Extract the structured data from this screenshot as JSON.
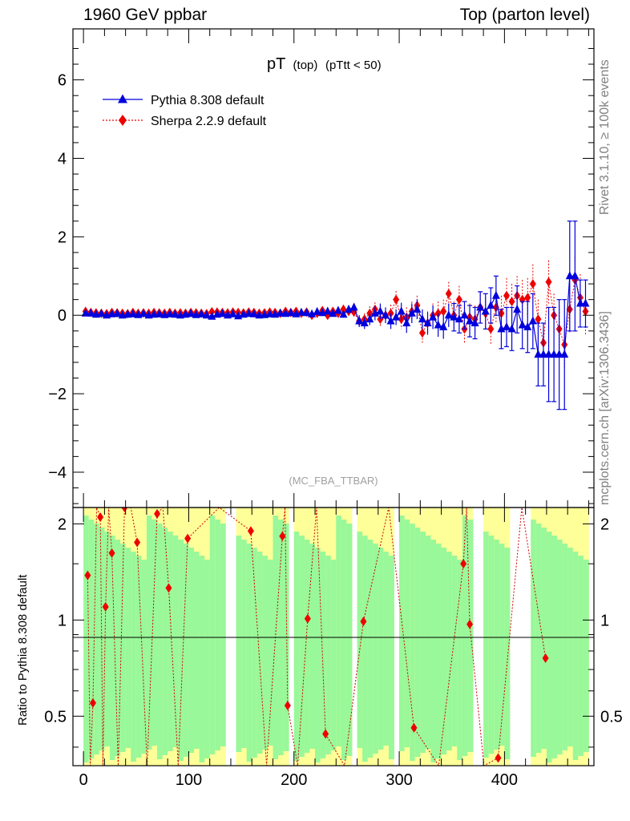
{
  "header": {
    "left": "1960 GeV ppbar",
    "right": "Top (parton level)"
  },
  "side_labels": {
    "rivet": "Rivet 3.1.10, ≥ 100k events",
    "mcplots": "mcplots.cern.ch [arXiv:1306.3436]"
  },
  "plot_title": {
    "main": "pT",
    "sub1": "(top)",
    "sub2": "(pTtt < 50)"
  },
  "analysis_tag": "(MC_FBA_TTBAR)",
  "ratio_ylabel": "Ratio to Pythia 8.308 default",
  "legend": [
    {
      "label": "Pythia 8.308 default",
      "color": "#0000dd",
      "marker": "triangle",
      "line": "solid"
    },
    {
      "label": "Sherpa 2.2.9 default",
      "color": "#ee0000",
      "marker": "diamond",
      "line": "dotted"
    }
  ],
  "band_colors": {
    "green": "#99f899",
    "yellow": "#ffff99"
  },
  "chart_data": [
    {
      "type": "line",
      "panel": "main",
      "xlim": [
        -10,
        485
      ],
      "ylim": [
        -4.9,
        7.3
      ],
      "y_ticks": [
        -4,
        -2,
        0,
        2,
        4,
        6
      ],
      "y_tick_labels": [
        "−4",
        "−2",
        "0",
        "2",
        "4",
        "6"
      ],
      "series": [
        {
          "name": "Pythia 8.308 default",
          "x": [
            2,
            7,
            12,
            17,
            22,
            27,
            32,
            37,
            42,
            47,
            52,
            57,
            62,
            67,
            72,
            77,
            82,
            87,
            92,
            97,
            102,
            107,
            112,
            117,
            122,
            127,
            132,
            137,
            142,
            147,
            152,
            157,
            162,
            167,
            172,
            177,
            182,
            187,
            192,
            197,
            202,
            207,
            212,
            217,
            222,
            227,
            232,
            237,
            242,
            247,
            252,
            257,
            262,
            267,
            272,
            277,
            282,
            287,
            292,
            297,
            302,
            307,
            312,
            317,
            322,
            327,
            332,
            337,
            342,
            347,
            352,
            357,
            362,
            367,
            372,
            377,
            382,
            387,
            392,
            397,
            402,
            407,
            412,
            417,
            422,
            427,
            432,
            437,
            442,
            447,
            452,
            457,
            462,
            467,
            472,
            477
          ],
          "y": [
            0.05,
            0.05,
            0.02,
            0.04,
            0.0,
            0.03,
            0.04,
            0.0,
            0.02,
            0.03,
            0.01,
            0.04,
            0.0,
            0.02,
            0.03,
            0.01,
            0.03,
            0.02,
            0.0,
            0.02,
            0.04,
            0.01,
            0.03,
            0.0,
            -0.03,
            0.02,
            0.04,
            0.0,
            0.03,
            -0.02,
            0.02,
            0.04,
            0.03,
            0.0,
            0.01,
            0.03,
            0.02,
            0.05,
            0.04,
            0.06,
            0.03,
            0.07,
            0.06,
            0.03,
            0.09,
            0.06,
            0.1,
            0.04,
            0.12,
            0.02,
            0.15,
            0.2,
            -0.15,
            -0.2,
            -0.1,
            0.05,
            0.1,
            0.0,
            -0.15,
            -0.05,
            0.1,
            -0.2,
            0.05,
            0.15,
            -0.1,
            -0.2,
            -0.05,
            -0.25,
            -0.3,
            0.0,
            -0.05,
            -0.1,
            0.0,
            -0.15,
            -0.2,
            0.2,
            0.1,
            0.25,
            0.5,
            -0.35,
            -0.3,
            -0.35,
            0.15,
            -0.25,
            -0.3,
            -0.15,
            -1.0,
            -1.0,
            -1.0,
            -1.0,
            -1.0,
            -1.0,
            1.0,
            1.0,
            0.3,
            0.3
          ],
          "err": [
            0.03,
            0.03,
            0.03,
            0.03,
            0.03,
            0.03,
            0.03,
            0.03,
            0.03,
            0.03,
            0.03,
            0.03,
            0.03,
            0.03,
            0.03,
            0.03,
            0.03,
            0.03,
            0.03,
            0.03,
            0.03,
            0.03,
            0.03,
            0.03,
            0.03,
            0.03,
            0.03,
            0.03,
            0.03,
            0.03,
            0.04,
            0.04,
            0.04,
            0.04,
            0.04,
            0.04,
            0.04,
            0.04,
            0.05,
            0.05,
            0.05,
            0.05,
            0.06,
            0.06,
            0.06,
            0.06,
            0.07,
            0.07,
            0.08,
            0.08,
            0.1,
            0.1,
            0.15,
            0.15,
            0.15,
            0.18,
            0.2,
            0.2,
            0.2,
            0.2,
            0.22,
            0.25,
            0.25,
            0.25,
            0.25,
            0.28,
            0.3,
            0.3,
            0.3,
            0.3,
            0.35,
            0.35,
            0.35,
            0.4,
            0.4,
            0.4,
            0.45,
            0.45,
            0.5,
            0.5,
            0.5,
            0.55,
            0.6,
            0.6,
            0.65,
            0.7,
            0.8,
            0.8,
            1.2,
            1.2,
            1.4,
            1.4,
            1.4,
            1.4,
            0.6,
            0.6
          ]
        },
        {
          "name": "Sherpa 2.2.9 default",
          "x": [
            2,
            7,
            12,
            17,
            22,
            27,
            32,
            37,
            42,
            47,
            52,
            57,
            62,
            67,
            72,
            77,
            82,
            87,
            92,
            97,
            102,
            107,
            112,
            117,
            122,
            127,
            132,
            137,
            142,
            147,
            152,
            157,
            162,
            167,
            172,
            177,
            182,
            187,
            192,
            197,
            202,
            207,
            212,
            217,
            222,
            227,
            232,
            237,
            242,
            247,
            252,
            257,
            262,
            267,
            272,
            277,
            282,
            287,
            292,
            297,
            302,
            307,
            312,
            317,
            322,
            327,
            332,
            337,
            342,
            347,
            352,
            357,
            362,
            367,
            372,
            377,
            382,
            387,
            392,
            397,
            402,
            407,
            412,
            417,
            422,
            427,
            432,
            437,
            442,
            447,
            452,
            457,
            462,
            467,
            472,
            477
          ],
          "y": [
            0.1,
            0.07,
            0.06,
            0.05,
            0.04,
            0.07,
            0.06,
            0.05,
            0.04,
            0.07,
            0.05,
            0.06,
            0.05,
            0.07,
            0.06,
            0.05,
            0.07,
            0.05,
            0.06,
            0.05,
            0.07,
            0.06,
            0.05,
            0.04,
            0.09,
            0.08,
            0.07,
            0.06,
            0.08,
            0.07,
            0.06,
            0.08,
            0.07,
            0.05,
            0.06,
            0.08,
            0.07,
            0.05,
            0.1,
            0.07,
            0.1,
            0.05,
            0.08,
            0.0,
            0.05,
            0.12,
            0.0,
            0.1,
            0.05,
            0.15,
            0.1,
            0.08,
            -0.15,
            -0.1,
            0.05,
            0.15,
            -0.1,
            0.0,
            0.05,
            0.4,
            -0.1,
            -0.05,
            0.1,
            0.25,
            -0.45,
            -0.2,
            0.0,
            0.05,
            0.1,
            0.55,
            0.0,
            0.4,
            -0.35,
            -0.05,
            -0.1,
            0.2,
            0.05,
            -0.35,
            0.2,
            0.05,
            0.5,
            0.35,
            0.5,
            0.4,
            0.45,
            0.8,
            -0.1,
            -0.7,
            0.85,
            0.0,
            -0.35,
            -0.75,
            0.15,
            0.9,
            0.45,
            0.1
          ],
          "err": [
            0.04,
            0.04,
            0.04,
            0.04,
            0.04,
            0.04,
            0.04,
            0.04,
            0.04,
            0.04,
            0.04,
            0.04,
            0.04,
            0.04,
            0.04,
            0.04,
            0.04,
            0.04,
            0.04,
            0.04,
            0.05,
            0.05,
            0.05,
            0.05,
            0.05,
            0.05,
            0.05,
            0.05,
            0.05,
            0.05,
            0.06,
            0.06,
            0.06,
            0.06,
            0.06,
            0.06,
            0.07,
            0.07,
            0.07,
            0.07,
            0.08,
            0.08,
            0.08,
            0.08,
            0.1,
            0.1,
            0.1,
            0.1,
            0.12,
            0.12,
            0.12,
            0.12,
            0.15,
            0.15,
            0.18,
            0.18,
            0.2,
            0.2,
            0.22,
            0.22,
            0.25,
            0.25,
            0.25,
            0.25,
            0.28,
            0.3,
            0.3,
            0.3,
            0.3,
            0.3,
            0.35,
            0.35,
            0.35,
            0.35,
            0.35,
            0.4,
            0.4,
            0.4,
            0.4,
            0.45,
            0.45,
            0.45,
            0.5,
            0.5,
            0.5,
            0.5,
            0.5,
            0.5,
            0.55,
            0.55,
            0.6,
            0.6,
            0.6,
            0.6,
            0.6,
            0.6
          ]
        }
      ]
    },
    {
      "type": "line",
      "panel": "ratio",
      "xlabel": "",
      "ylabel": "Ratio to Pythia 8.308 default",
      "xlim": [
        -10,
        485
      ],
      "ylim": [
        0.35,
        2.25
      ],
      "x_ticks": [
        0,
        100,
        200,
        300,
        400
      ],
      "x_tick_labels": [
        "0",
        "100",
        "200",
        "300",
        "400"
      ],
      "y_ticks": [
        0.5,
        1,
        2
      ],
      "y_tick_labels": [
        "0.5",
        "1",
        "2"
      ],
      "reference_line": 1,
      "series": [
        {
          "name": "Sherpa 2.2.9 default",
          "x": [
            4,
            9,
            16,
            21,
            27,
            39,
            51,
            70,
            81,
            99,
            159,
            189,
            194,
            213,
            230,
            266,
            314,
            361,
            367,
            394,
            439
          ],
          "y": [
            1.38,
            0.55,
            2.1,
            1.1,
            1.62,
            2.25,
            1.75,
            2.15,
            1.26,
            1.8,
            1.9,
            1.83,
            0.54,
            1.01,
            0.44,
            0.99,
            0.46,
            1.5,
            0.97,
            0.37,
            0.76
          ]
        }
      ]
    }
  ]
}
